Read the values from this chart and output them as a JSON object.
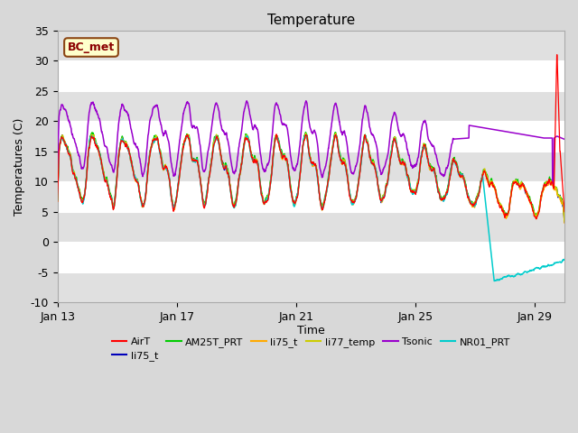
{
  "title": "Temperature",
  "xlabel": "Time",
  "ylabel": "Temperatures (C)",
  "ylim": [
    -10,
    35
  ],
  "xlim": [
    0,
    17
  ],
  "xtick_positions": [
    0,
    4,
    8,
    12,
    16
  ],
  "xtick_labels": [
    "Jan 13",
    "Jan 17",
    "Jan 21",
    "Jan 25",
    "Jan 29"
  ],
  "ytick_positions": [
    -10,
    -5,
    0,
    5,
    10,
    15,
    20,
    25,
    30,
    35
  ],
  "bg_color": "#d8d8d8",
  "plot_bg_color": "#d8d8d8",
  "band_color": "#e8e8e8",
  "grid_color": "#ffffff",
  "annotation_box": "BC_met",
  "legend_entries": [
    "AirT",
    "li75_t",
    "AM25T_PRT",
    "li75_t",
    "li77_temp",
    "Tsonic",
    "NR01_PRT"
  ],
  "legend_colors": [
    "#ff0000",
    "#0000bb",
    "#00cc00",
    "#ffaa00",
    "#cccc00",
    "#9900cc",
    "#00cccc"
  ],
  "line_colors": {
    "AirT": "#ff0000",
    "li75_t_blue": "#0000bb",
    "AM25T_PRT": "#00cc00",
    "li75_t_orange": "#ffaa00",
    "li77_temp": "#cccc00",
    "Tsonic": "#9900cc",
    "NR01_PRT": "#00cccc"
  }
}
